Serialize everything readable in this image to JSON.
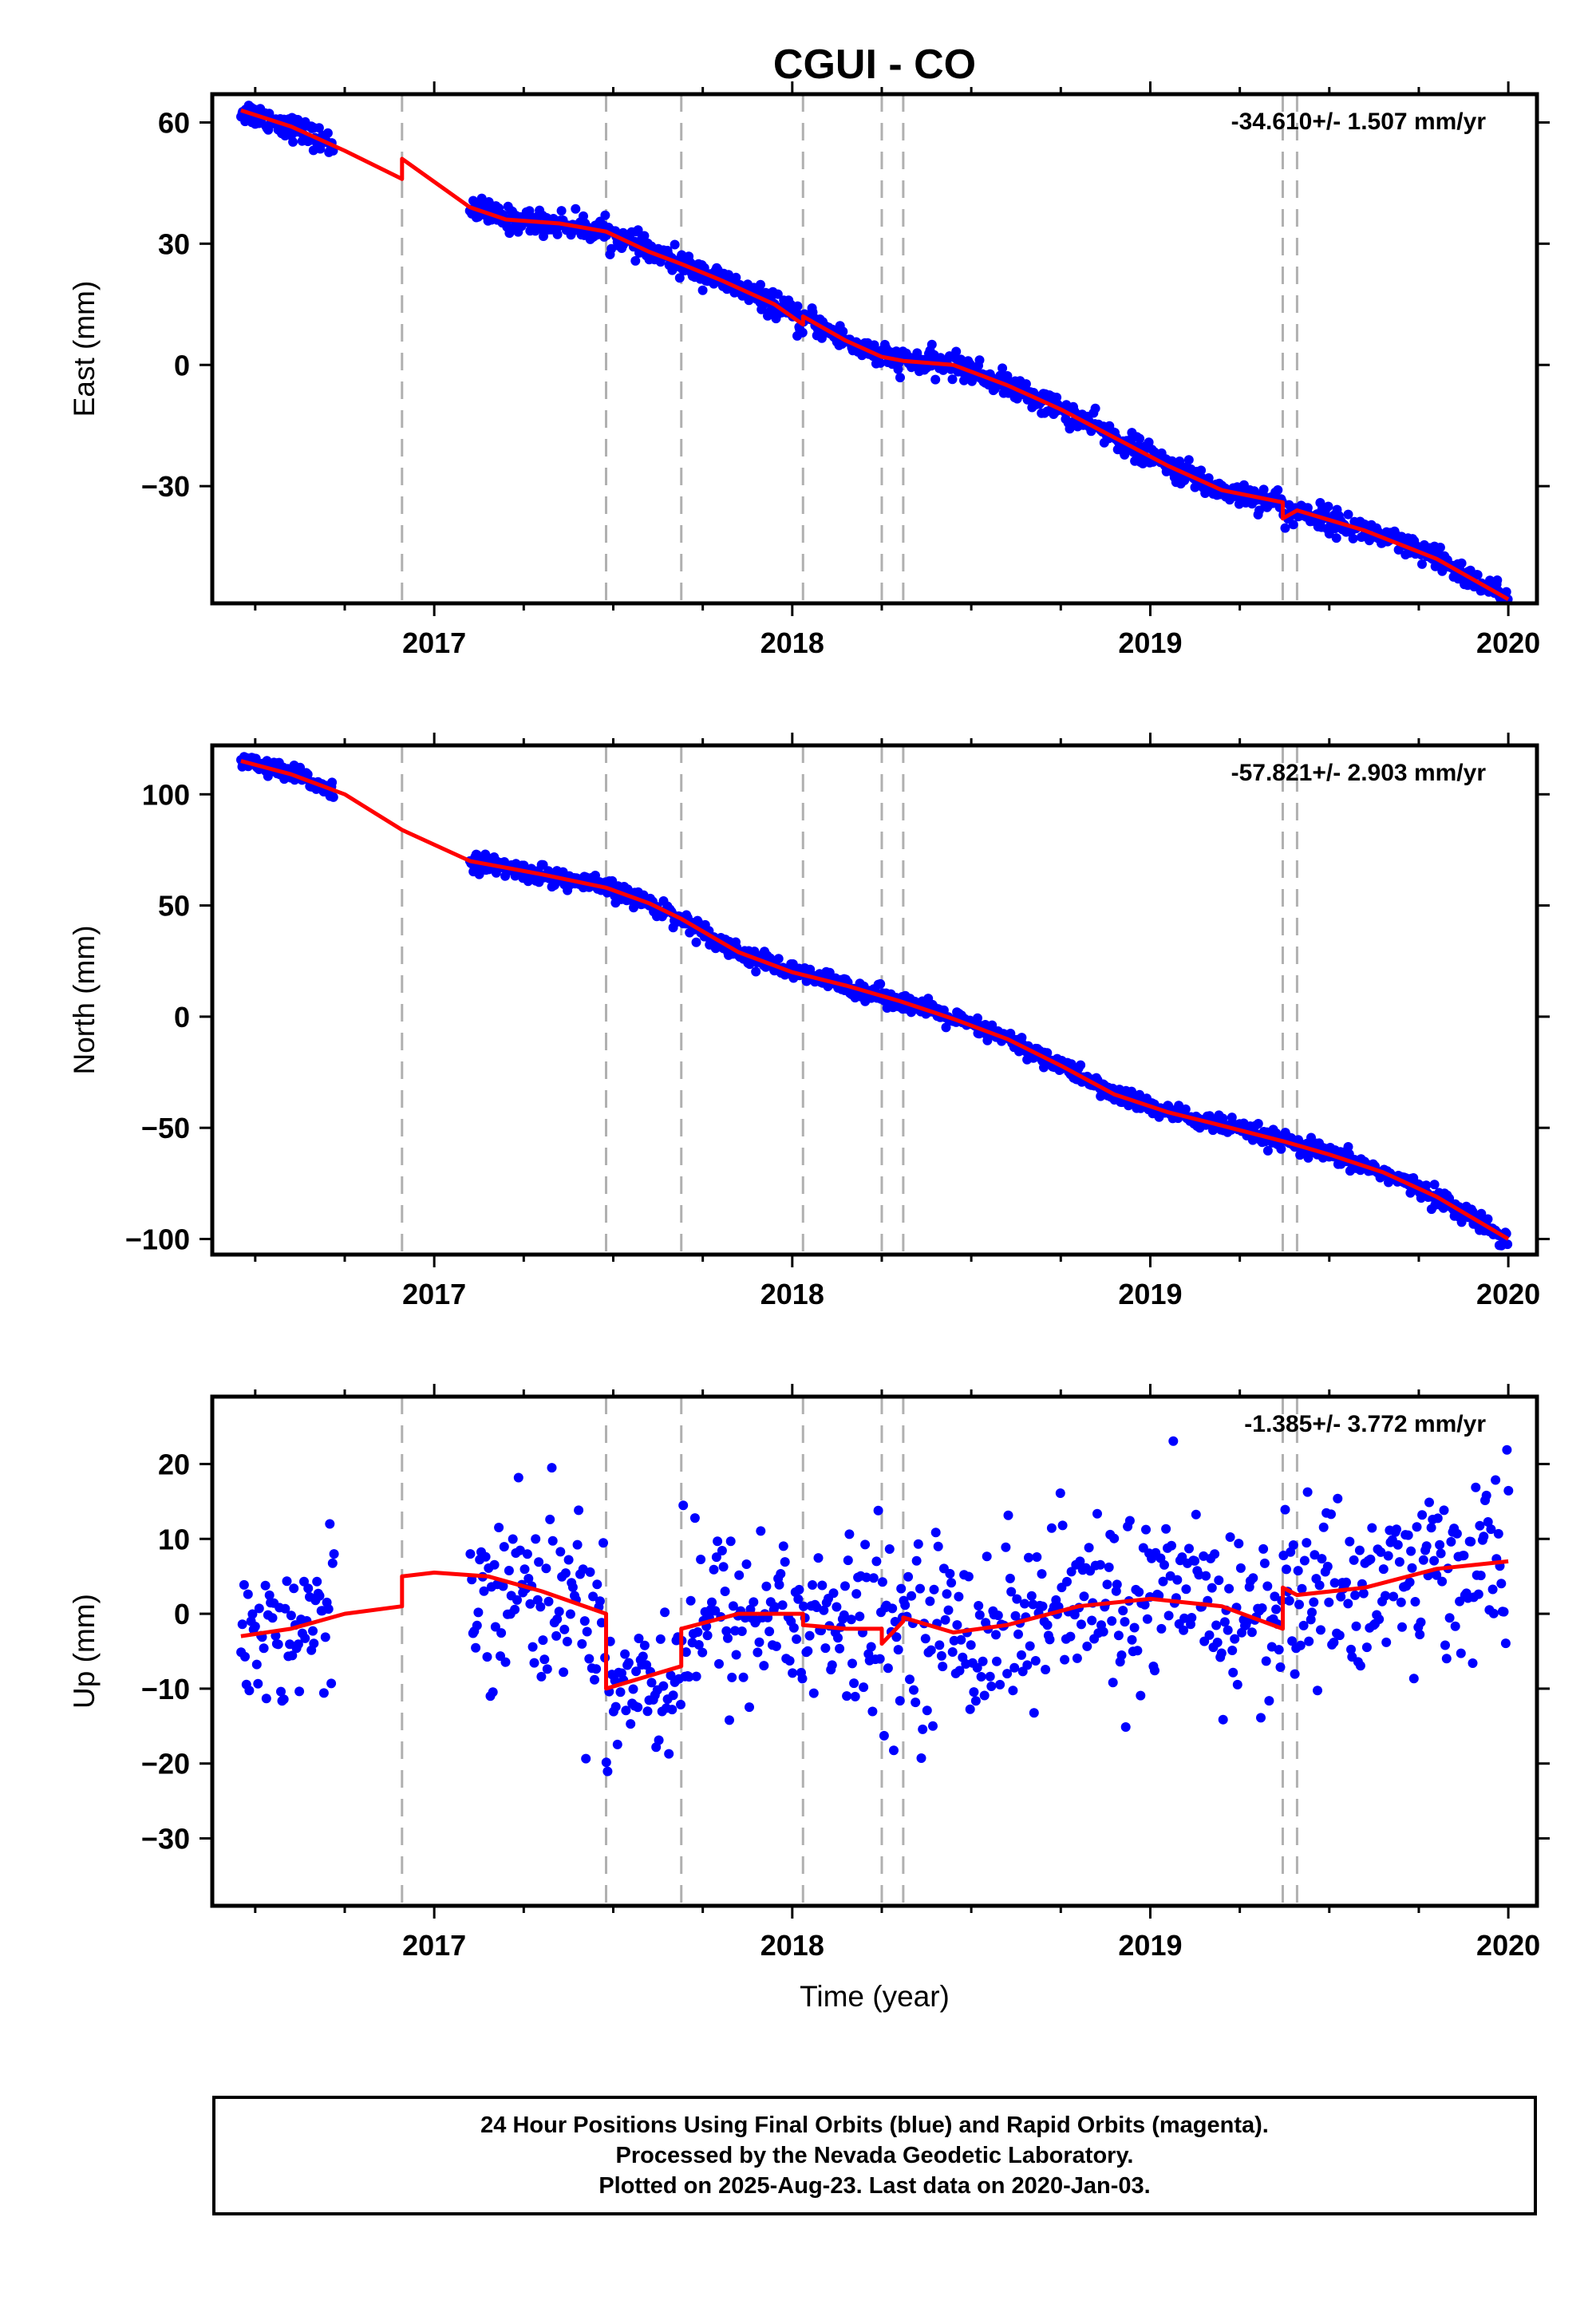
{
  "title": "CGUI - CO",
  "colors": {
    "final_orbits": "#0000ff",
    "model": "#ff0000",
    "breaks": "#b0b0b0",
    "frame": "#000000"
  },
  "footer": {
    "line1": "24 Hour Positions Using Final Orbits (blue) and Rapid Orbits (magenta).",
    "line2": "Processed by the Nevada Geodetic Laboratory.",
    "line3": "Plotted on 2025-Aug-23. Last data on 2020-Jan-03."
  },
  "chart_data": [
    {
      "type": "scatter",
      "component": "east",
      "ylabel": "East (mm)",
      "xlabel": "",
      "rate_label": "-34.610+/- 1.507 mm/yr",
      "xlim": [
        2016.38,
        2020.08
      ],
      "ylim": [
        -59,
        67
      ],
      "xticks": [
        2017,
        2018,
        2019,
        2020
      ],
      "xtick_labels": [
        "2017",
        "2018",
        "2019",
        "2020"
      ],
      "yticks": [
        60,
        30,
        0,
        -30
      ],
      "ytick_labels": [
        "60",
        "30",
        "0",
        "−30"
      ],
      "breaks": [
        2016.91,
        2017.48,
        2017.69,
        2018.03,
        2018.25,
        2018.31,
        2019.37,
        2019.41
      ],
      "data_segments": [
        {
          "x_start": 2016.46,
          "x_end": 2016.72,
          "noise": 1.5
        },
        {
          "x_start": 2017.1,
          "x_end": 2020.0,
          "noise": 1.5
        }
      ],
      "model_line": {
        "x": [
          2016.46,
          2016.6,
          2016.75,
          2016.91,
          2016.91,
          2017.1,
          2017.2,
          2017.35,
          2017.48,
          2017.6,
          2017.69,
          2017.8,
          2017.95,
          2018.03,
          2018.03,
          2018.15,
          2018.25,
          2018.25,
          2018.31,
          2018.31,
          2018.45,
          2018.6,
          2018.75,
          2018.9,
          2019.05,
          2019.2,
          2019.37,
          2019.37,
          2019.41,
          2019.41,
          2019.6,
          2019.8,
          2020.0
        ],
        "y": [
          63,
          59,
          53,
          46,
          51,
          39,
          36,
          35,
          33,
          28,
          25,
          21,
          15,
          10,
          12,
          6,
          2,
          2,
          1,
          1,
          0,
          -5,
          -11,
          -18,
          -25,
          -31,
          -34,
          -38,
          -36,
          -36,
          -41,
          -48,
          -58
        ]
      }
    },
    {
      "type": "scatter",
      "component": "north",
      "ylabel": "North (mm)",
      "xlabel": "",
      "rate_label": "-57.821+/- 2.903 mm/yr",
      "xlim": [
        2016.38,
        2020.08
      ],
      "ylim": [
        -107,
        122
      ],
      "xticks": [
        2017,
        2018,
        2019,
        2020
      ],
      "xtick_labels": [
        "2017",
        "2018",
        "2019",
        "2020"
      ],
      "yticks": [
        100,
        50,
        0,
        -50,
        -100
      ],
      "ytick_labels": [
        "100",
        "50",
        "0",
        "−50",
        "−100"
      ],
      "breaks": [
        2016.91,
        2017.48,
        2017.69,
        2018.03,
        2018.25,
        2018.31,
        2019.37,
        2019.41
      ],
      "data_segments": [
        {
          "x_start": 2016.46,
          "x_end": 2016.72,
          "noise": 2
        },
        {
          "x_start": 2017.1,
          "x_end": 2020.0,
          "noise": 2
        }
      ],
      "model_line": {
        "x": [
          2016.46,
          2016.6,
          2016.75,
          2016.91,
          2017.1,
          2017.3,
          2017.48,
          2017.6,
          2017.69,
          2017.85,
          2018.0,
          2018.15,
          2018.3,
          2018.45,
          2018.6,
          2018.75,
          2018.9,
          2019.05,
          2019.2,
          2019.37,
          2019.5,
          2019.65,
          2019.8,
          2020.0
        ],
        "y": [
          115,
          109,
          100,
          84,
          70,
          64,
          58,
          51,
          44,
          29,
          20,
          14,
          7,
          -1,
          -10,
          -22,
          -35,
          -43,
          -49,
          -56,
          -62,
          -70,
          -81,
          -100
        ]
      }
    },
    {
      "type": "scatter",
      "component": "up",
      "ylabel": "Up (mm)",
      "xlabel": "Time (year)",
      "rate_label": "-1.385+/- 3.772 mm/yr",
      "xlim": [
        2016.38,
        2020.08
      ],
      "ylim": [
        -39,
        29
      ],
      "xticks": [
        2017,
        2018,
        2019,
        2020
      ],
      "xtick_labels": [
        "2017",
        "2018",
        "2019",
        "2020"
      ],
      "yticks": [
        20,
        10,
        0,
        -10,
        -20,
        -30
      ],
      "ytick_labels": [
        "20",
        "10",
        "0",
        "−10",
        "−20",
        "−30"
      ],
      "breaks": [
        2016.91,
        2017.48,
        2017.69,
        2018.03,
        2018.25,
        2018.31,
        2019.37,
        2019.41
      ],
      "data_segments": [
        {
          "x_start": 2016.46,
          "x_end": 2016.72,
          "noise": 5
        },
        {
          "x_start": 2017.1,
          "x_end": 2020.0,
          "noise": 6
        }
      ],
      "model_line": {
        "x": [
          2016.46,
          2016.6,
          2016.75,
          2016.91,
          2016.91,
          2017.0,
          2017.15,
          2017.3,
          2017.48,
          2017.48,
          2017.55,
          2017.69,
          2017.69,
          2017.85,
          2018.0,
          2018.03,
          2018.03,
          2018.15,
          2018.25,
          2018.25,
          2018.31,
          2018.31,
          2018.45,
          2018.6,
          2018.8,
          2019.0,
          2019.2,
          2019.37,
          2019.37,
          2019.41,
          2019.41,
          2019.6,
          2019.8,
          2020.0
        ],
        "y": [
          -3,
          -2,
          0,
          1,
          5,
          5.5,
          5,
          3,
          0,
          -10,
          -9,
          -7,
          -2,
          0,
          0,
          0,
          -1.5,
          -2,
          -2,
          -4,
          -1,
          -0.5,
          -2.5,
          -1.5,
          1,
          2,
          1,
          -2,
          3.5,
          2.5,
          2.5,
          3.5,
          6,
          7
        ]
      }
    }
  ]
}
